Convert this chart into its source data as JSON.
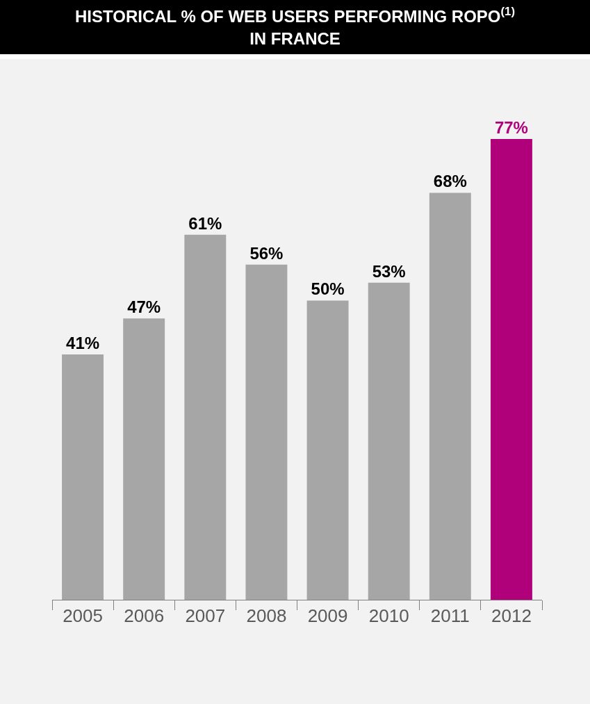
{
  "chart_data": {
    "type": "bar",
    "title": "HISTORICAL % OF WEB USERS PERFORMING ROPO$^{(1)}$ IN FRANCE",
    "categories": [
      "2005",
      "2006",
      "2007",
      "2008",
      "2009",
      "2010",
      "2011",
      "2012"
    ],
    "values": [
      41,
      47,
      61,
      56,
      50,
      53,
      68,
      77
    ],
    "value_labels": [
      "41%",
      "47%",
      "61%",
      "56%",
      "50%",
      "53%",
      "68%",
      "77%"
    ],
    "colors": [
      "#a6a6a6",
      "#a6a6a6",
      "#a6a6a6",
      "#a6a6a6",
      "#a6a6a6",
      "#a6a6a6",
      "#a6a6a6",
      "#b0007a"
    ],
    "grid": false,
    "legend": false,
    "tick_labels": "x"
  }
}
